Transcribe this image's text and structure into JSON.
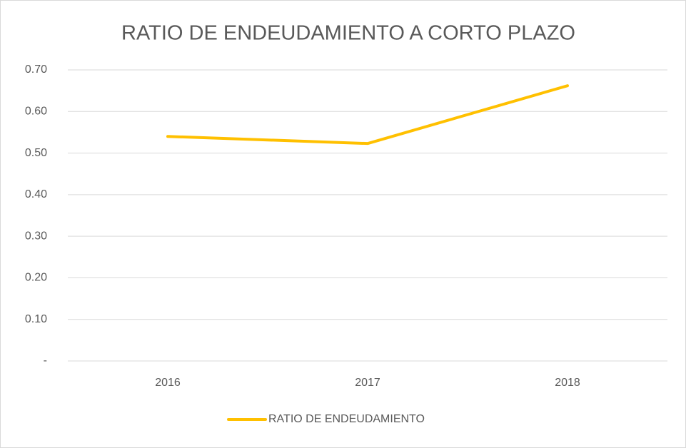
{
  "chart_data": {
    "type": "line",
    "title": "RATIO DE ENDEUDAMIENTO A CORTO PLAZO",
    "categories": [
      "2016",
      "2017",
      "2018"
    ],
    "series": [
      {
        "name": "RATIO DE ENDEUDAMIENTO",
        "color": "#ffc000",
        "values": [
          0.54,
          0.523,
          0.662
        ]
      }
    ],
    "ylim": [
      0,
      0.7
    ],
    "yticks": [
      {
        "value": 0,
        "label": "-"
      },
      {
        "value": 0.1,
        "label": "0.10"
      },
      {
        "value": 0.2,
        "label": "0.20"
      },
      {
        "value": 0.3,
        "label": "0.30"
      },
      {
        "value": 0.4,
        "label": "0.40"
      },
      {
        "value": 0.5,
        "label": "0.50"
      },
      {
        "value": 0.6,
        "label": "0.60"
      },
      {
        "value": 0.7,
        "label": "0.70"
      }
    ],
    "grid": true,
    "legend": "bottom"
  }
}
